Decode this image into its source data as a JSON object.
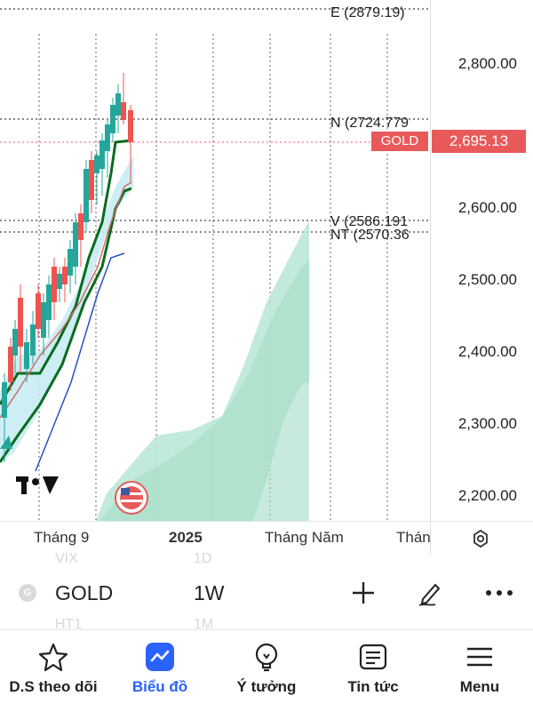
{
  "chart": {
    "price_levels": [
      "2,800.00",
      "2,600.00",
      "2,500.00",
      "2,400.00",
      "2,300.00",
      "2,200.00"
    ],
    "levels": {
      "e": "E (2879.19)",
      "n": "N (2724.779",
      "v": "V (2586.191",
      "nt": "NT (2570.36"
    },
    "symbol_tag": "GOLD",
    "current_price": "2,695.13",
    "colors": {
      "up": "#26a69a",
      "down": "#ef5350",
      "cloud": "#b7e6d3",
      "band": "#c8ecf3",
      "tag": "#e85a5a"
    }
  },
  "xaxis": {
    "labels": [
      "Tháng 9",
      "2025",
      "Tháng Năm",
      "Thán"
    ]
  },
  "symbol_bar": {
    "icon_letter": "G",
    "name": "GOLD",
    "interval": "1W",
    "ghost_top": [
      "VIX",
      "1D"
    ],
    "ghost_bottom": [
      "HT1",
      "1M"
    ]
  },
  "nav": {
    "items": [
      {
        "label": "D.S theo dõi",
        "icon": "star-icon"
      },
      {
        "label": "Biểu đồ",
        "icon": "chart-icon"
      },
      {
        "label": "Ý tưởng",
        "icon": "lightbulb-icon"
      },
      {
        "label": "Tin tức",
        "icon": "news-icon"
      },
      {
        "label": "Menu",
        "icon": "menu-icon"
      }
    ],
    "active_index": 1
  }
}
